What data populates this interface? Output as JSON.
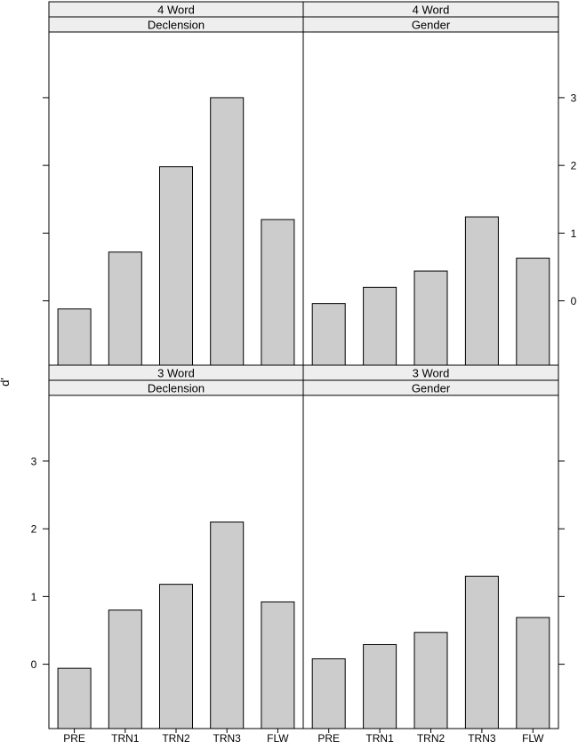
{
  "chart_data": {
    "type": "bar",
    "ylabel": "d'",
    "categories": [
      "PRE",
      "TRN1",
      "TRN2",
      "TRN3",
      "FLW"
    ],
    "yticks": [
      0,
      1,
      2,
      3
    ],
    "ylim": [
      -0.95,
      3.97
    ],
    "bar_color": "#cccccc",
    "strip_color": "#eeeeee",
    "panels": [
      {
        "strip_top": "4 Word",
        "strip_bottom": "Declension",
        "values": [
          -0.12,
          0.72,
          1.98,
          3.0,
          1.2
        ]
      },
      {
        "strip_top": "4 Word",
        "strip_bottom": "Gender",
        "values": [
          -0.04,
          0.2,
          0.44,
          1.24,
          0.63
        ]
      },
      {
        "strip_top": "3 Word",
        "strip_bottom": "Declension",
        "values": [
          -0.06,
          0.8,
          1.18,
          2.1,
          0.92
        ]
      },
      {
        "strip_top": "3 Word",
        "strip_bottom": "Gender",
        "values": [
          0.08,
          0.29,
          0.47,
          1.3,
          0.69
        ]
      }
    ]
  }
}
